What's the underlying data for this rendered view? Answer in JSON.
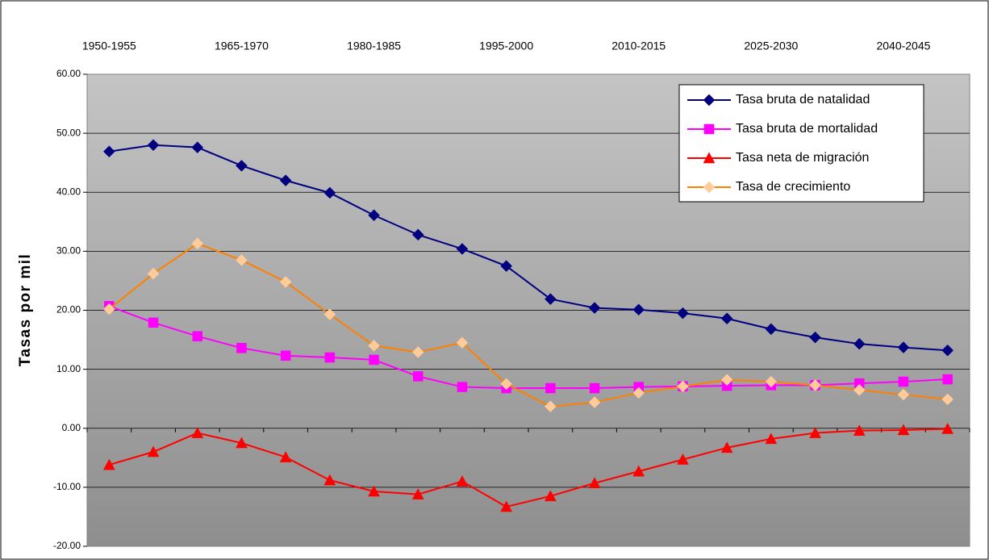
{
  "chart_data": {
    "type": "line",
    "ylabel": "Tasas por mil",
    "categories": [
      "1950-1955",
      null,
      null,
      "1965-1970",
      null,
      null,
      "1980-1985",
      null,
      null,
      "1995-2000",
      null,
      null,
      "2010-2015",
      null,
      null,
      "2025-2030",
      null,
      null,
      "2040-2045",
      null
    ],
    "series": [
      {
        "name": "Tasa bruta de natalidad",
        "color": "#000080",
        "marker": "diamond",
        "values": [
          46.9,
          48.0,
          47.6,
          44.5,
          42.0,
          39.9,
          36.1,
          32.8,
          30.4,
          27.5,
          21.9,
          20.4,
          20.1,
          19.5,
          18.6,
          16.8,
          15.4,
          14.3,
          13.7,
          13.2
        ]
      },
      {
        "name": "Tasa bruta de mortalidad",
        "color": "#ff00ff",
        "marker": "square",
        "values": [
          20.7,
          17.9,
          15.6,
          13.6,
          12.3,
          12.0,
          11.6,
          8.8,
          7.0,
          6.8,
          6.8,
          6.8,
          7.0,
          7.1,
          7.2,
          7.3,
          7.3,
          7.6,
          7.9,
          8.3
        ]
      },
      {
        "name": "Tasa neta de migración",
        "color": "#ff0000",
        "marker": "triangle",
        "values": [
          -6.2,
          -4.0,
          -0.8,
          -2.5,
          -4.9,
          -8.8,
          -10.7,
          -11.2,
          -9.0,
          -13.3,
          -11.5,
          -9.3,
          -7.3,
          -5.3,
          -3.3,
          -1.8,
          -0.8,
          -0.4,
          -0.3,
          -0.1
        ]
      },
      {
        "name": "Tasa de crecimiento",
        "color": "#ff8000",
        "marker_color": "#ffcc99",
        "marker": "diamond",
        "values": [
          20.2,
          26.2,
          31.3,
          28.5,
          24.8,
          19.3,
          14.0,
          12.9,
          14.5,
          7.5,
          3.7,
          4.4,
          6.0,
          7.1,
          8.2,
          7.9,
          7.3,
          6.5,
          5.7,
          4.9
        ]
      }
    ],
    "ylim": [
      -20,
      60
    ],
    "yticks": [
      {
        "value": -20,
        "label": "-20.00"
      },
      {
        "value": -10,
        "label": "-10.00"
      },
      {
        "value": 0,
        "label": "0.00"
      },
      {
        "value": 10,
        "label": "10.00"
      },
      {
        "value": 20,
        "label": "20.00"
      },
      {
        "value": 30,
        "label": "30.00"
      },
      {
        "value": 40,
        "label": "40.00"
      },
      {
        "value": 50,
        "label": "50.00"
      },
      {
        "value": 60,
        "label": "60.00"
      }
    ],
    "grid": true,
    "legend": "upper right"
  }
}
